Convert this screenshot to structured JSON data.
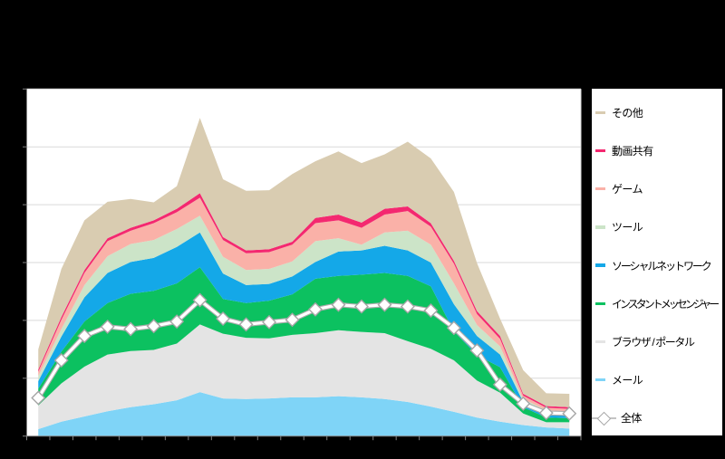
{
  "chart": {
    "background": "#000000",
    "plot_bg": "#FFFFFF",
    "gridline_color": "#D9D9D9",
    "axis_color": "#808080"
  },
  "chart_data": {
    "type": "area",
    "stacked": true,
    "title": "",
    "x_points": 24,
    "x_labels_visible": false,
    "y_labels_visible": false,
    "y_gridline_divisions": 6,
    "ylim_units": [
      0,
      6
    ],
    "legend_position": "right",
    "series": [
      {
        "id": "mail",
        "name": "メール",
        "color": "#7FD4F7",
        "values": [
          0.12,
          0.25,
          0.34,
          0.43,
          0.5,
          0.55,
          0.62,
          0.76,
          0.65,
          0.64,
          0.65,
          0.67,
          0.67,
          0.69,
          0.67,
          0.64,
          0.59,
          0.51,
          0.42,
          0.32,
          0.25,
          0.19,
          0.15,
          0.13
        ]
      },
      {
        "id": "browser-portal",
        "name": "ブラウザ / ポータル",
        "color": "#E4E4E4",
        "values": [
          0.41,
          0.66,
          0.86,
          0.98,
          0.97,
          0.94,
          0.98,
          1.17,
          1.12,
          1.06,
          1.04,
          1.08,
          1.11,
          1.14,
          1.13,
          1.14,
          1.05,
          1.0,
          0.89,
          0.64,
          0.5,
          0.2,
          0.09,
          0.11
        ]
      },
      {
        "id": "instant-messenger",
        "name": "インスタントメッセンジャー",
        "color": "#0CC160",
        "values": [
          0.29,
          0.55,
          0.78,
          0.89,
          0.99,
          1.02,
          1.04,
          0.99,
          0.6,
          0.6,
          0.65,
          0.7,
          0.94,
          0.94,
          0.99,
          1.04,
          1.13,
          1.08,
          0.5,
          0.44,
          0.44,
          0.11,
          0.08,
          0.07
        ]
      },
      {
        "id": "social-network",
        "name": "ソーシャルネットワーク",
        "color": "#14A8E8",
        "values": [
          0.13,
          0.26,
          0.42,
          0.52,
          0.55,
          0.57,
          0.63,
          0.6,
          0.44,
          0.31,
          0.29,
          0.31,
          0.29,
          0.42,
          0.42,
          0.47,
          0.44,
          0.41,
          0.47,
          0.33,
          0.22,
          0.09,
          0.09,
          0.08
        ]
      },
      {
        "id": "tool",
        "name": "ツール",
        "color": "#CCE4C8",
        "values": [
          0.09,
          0.13,
          0.21,
          0.29,
          0.31,
          0.31,
          0.31,
          0.29,
          0.29,
          0.26,
          0.26,
          0.26,
          0.36,
          0.23,
          0.1,
          0.23,
          0.34,
          0.31,
          0.36,
          0.19,
          0.14,
          0.05,
          0.04,
          0.04
        ]
      },
      {
        "id": "game",
        "name": "ゲーム",
        "color": "#FAB1A8",
        "values": [
          0.07,
          0.16,
          0.21,
          0.26,
          0.23,
          0.29,
          0.29,
          0.31,
          0.29,
          0.29,
          0.29,
          0.29,
          0.31,
          0.31,
          0.29,
          0.31,
          0.34,
          0.31,
          0.34,
          0.19,
          0.13,
          0.06,
          0.04,
          0.04
        ]
      },
      {
        "id": "video-sharing",
        "name": "動画共有",
        "color": "#F42870",
        "values": [
          0.04,
          0.05,
          0.05,
          0.05,
          0.05,
          0.05,
          0.06,
          0.08,
          0.05,
          0.05,
          0.05,
          0.05,
          0.09,
          0.1,
          0.09,
          0.1,
          0.08,
          0.06,
          0.05,
          0.05,
          0.05,
          0.03,
          0.03,
          0.03
        ]
      },
      {
        "id": "other",
        "name": "その他",
        "color": "#D9CCB1",
        "values": [
          0.35,
          0.83,
          0.86,
          0.63,
          0.5,
          0.31,
          0.39,
          1.3,
          1.0,
          1.03,
          1.02,
          1.17,
          0.98,
          1.09,
          1.03,
          0.94,
          1.12,
          1.12,
          1.19,
          0.83,
          0.3,
          0.41,
          0.22,
          0.23
        ]
      }
    ],
    "overall": {
      "id": "overall",
      "name": "全体",
      "line_color": "#FFFFFF",
      "marker": "diamond",
      "values": [
        0.66,
        1.31,
        1.73,
        1.89,
        1.85,
        1.9,
        1.98,
        2.35,
        2.03,
        1.93,
        1.97,
        2.01,
        2.19,
        2.27,
        2.24,
        2.27,
        2.24,
        2.17,
        1.87,
        1.48,
        0.89,
        0.56,
        0.4,
        0.39
      ]
    }
  },
  "legend": {
    "items": [
      {
        "label": "その他",
        "color": "#D9CCB1",
        "marker": "bar"
      },
      {
        "label": "動画共有",
        "color": "#F42870",
        "marker": "bar"
      },
      {
        "label": "ゲーム",
        "color": "#FAB1A8",
        "marker": "bar"
      },
      {
        "label": "ツール",
        "color": "#CCE4C8",
        "marker": "bar"
      },
      {
        "label": "ソーシャルネットワーク",
        "color": "#14A8E8",
        "marker": "bar"
      },
      {
        "label": "インスタントメッセンジャー",
        "color": "#0CC160",
        "marker": "bar"
      },
      {
        "label": "ブラウザ / ポータル",
        "color": "#E4E4E4",
        "marker": "bar"
      },
      {
        "label": "メール",
        "color": "#7FD4F7",
        "marker": "bar"
      },
      {
        "label": "全体",
        "color": "#FFFFFF",
        "marker": "diamond"
      }
    ]
  }
}
